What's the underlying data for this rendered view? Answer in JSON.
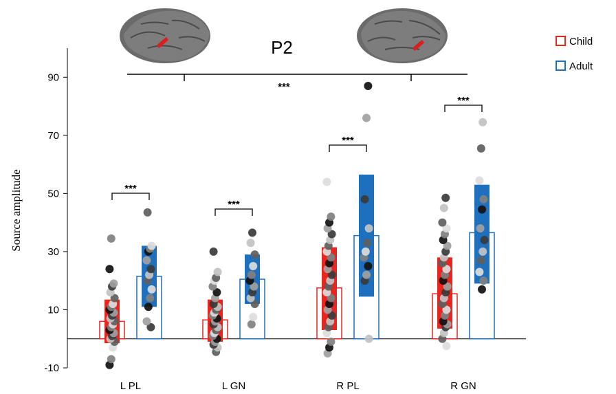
{
  "chart_data": {
    "type": "bar",
    "title": "P2",
    "ylabel": "Source amplitude",
    "xlabel": "",
    "ylim": [
      -10,
      100
    ],
    "yticks": [
      -10,
      10,
      30,
      50,
      70,
      90
    ],
    "categories": [
      "L PL",
      "L GN",
      "R PL",
      "R GN"
    ],
    "legend": {
      "placement": "top-right"
    },
    "series": [
      {
        "name": "Child",
        "color": "#e8251f",
        "means": [
          6,
          6.5,
          17.5,
          15.5
        ],
        "ci": [
          [
            -1.5,
            13.5
          ],
          [
            -1,
            13.5
          ],
          [
            3,
            31.5
          ],
          [
            3.5,
            28
          ]
        ],
        "points": [
          [
            -9,
            -7,
            -3,
            -1,
            0,
            1,
            2,
            3,
            4,
            5,
            6,
            7,
            8,
            9,
            10,
            11,
            12,
            14,
            16,
            18,
            19,
            24,
            34.5
          ],
          [
            -4.5,
            -3,
            -2,
            -1,
            0,
            1,
            2,
            3,
            4,
            5,
            6,
            7,
            8,
            9,
            10,
            11,
            12,
            14,
            16,
            18,
            20,
            21,
            23,
            30
          ],
          [
            -5,
            -3,
            -1,
            2,
            4,
            6,
            8,
            10,
            12,
            14,
            16,
            18,
            20,
            22,
            24,
            26,
            28,
            30,
            32,
            34,
            36,
            38,
            40,
            42,
            54
          ],
          [
            -2.5,
            0,
            2,
            4,
            5,
            6,
            8,
            10,
            12,
            14,
            16,
            18,
            20,
            22,
            24,
            26,
            28,
            30,
            32,
            34,
            36,
            38,
            40,
            45,
            48.5
          ]
        ]
      },
      {
        "name": "Adult",
        "color": "#1f6fbf",
        "means": [
          21.5,
          20.5,
          35.5,
          36.5
        ],
        "ci": [
          [
            11,
            32
          ],
          [
            12,
            29
          ],
          [
            14.5,
            56.5
          ],
          [
            19,
            53
          ]
        ],
        "points": [
          [
            4,
            6,
            11,
            14,
            17,
            20,
            22,
            24,
            27,
            30,
            31,
            32,
            43.5
          ],
          [
            5,
            7.5,
            12,
            14,
            16,
            18,
            20,
            22,
            25,
            29,
            33,
            36.5
          ],
          [
            0,
            20,
            22,
            25,
            28,
            30,
            33,
            38,
            48,
            76,
            87
          ],
          [
            17,
            20,
            23,
            27,
            30,
            34,
            38,
            44.5,
            48,
            54.5,
            65.5,
            74.5
          ]
        ]
      }
    ],
    "significance": {
      "pairwise": [
        "***",
        "***",
        "***",
        "***"
      ],
      "overall": "***"
    }
  }
}
